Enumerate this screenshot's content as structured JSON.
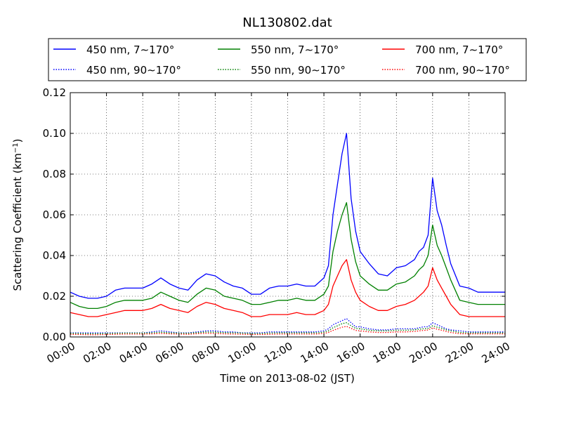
{
  "chart_data": {
    "type": "line",
    "title": "NL130802.dat",
    "xlabel": "Time on 2013-08-02 (JST)",
    "ylabel": "Scattering Coefficient (km",
    "ylabel_exp": "−1",
    "ylabel_close": ")",
    "xlim": [
      0,
      24
    ],
    "ylim": [
      0,
      0.12
    ],
    "grid": true,
    "legend_position": "top",
    "x_ticks": [
      0,
      2,
      4,
      6,
      8,
      10,
      12,
      14,
      16,
      18,
      20,
      22,
      24
    ],
    "x_tick_labels": [
      "00:00",
      "02:00",
      "04:00",
      "06:00",
      "08:00",
      "10:00",
      "12:00",
      "14:00",
      "16:00",
      "18:00",
      "20:00",
      "22:00",
      "24:00"
    ],
    "y_ticks": [
      0,
      0.02,
      0.04,
      0.06,
      0.08,
      0.1,
      0.12
    ],
    "y_tick_labels": [
      "0.00",
      "0.02",
      "0.04",
      "0.06",
      "0.08",
      "0.10",
      "0.12"
    ],
    "x": [
      0,
      0.5,
      1,
      1.5,
      2,
      2.5,
      3,
      3.5,
      4,
      4.5,
      5,
      5.5,
      6,
      6.5,
      7,
      7.5,
      8,
      8.5,
      9,
      9.5,
      10,
      10.5,
      11,
      11.5,
      12,
      12.5,
      13,
      13.5,
      14,
      14.25,
      14.5,
      14.75,
      15,
      15.25,
      15.5,
      15.75,
      16,
      16.5,
      17,
      17.5,
      18,
      18.5,
      19,
      19.25,
      19.5,
      19.75,
      20,
      20.25,
      20.5,
      20.75,
      21,
      21.5,
      22,
      22.5,
      23,
      23.5,
      24
    ],
    "series": [
      {
        "name": "450 nm, 7∼170°",
        "color": "#0000ff",
        "style": "solid",
        "values": [
          0.022,
          0.02,
          0.019,
          0.019,
          0.02,
          0.023,
          0.024,
          0.024,
          0.024,
          0.026,
          0.029,
          0.026,
          0.024,
          0.023,
          0.028,
          0.031,
          0.03,
          0.027,
          0.025,
          0.024,
          0.021,
          0.021,
          0.024,
          0.025,
          0.025,
          0.026,
          0.025,
          0.025,
          0.029,
          0.035,
          0.06,
          0.075,
          0.09,
          0.1,
          0.068,
          0.052,
          0.042,
          0.036,
          0.031,
          0.03,
          0.034,
          0.035,
          0.038,
          0.042,
          0.044,
          0.05,
          0.078,
          0.062,
          0.055,
          0.045,
          0.036,
          0.025,
          0.024,
          0.022,
          0.022,
          0.022,
          0.022
        ]
      },
      {
        "name": "450 nm, 90∼170°",
        "color": "#0000ff",
        "style": "dotted",
        "values": [
          0.002,
          0.002,
          0.002,
          0.002,
          0.002,
          0.002,
          0.002,
          0.002,
          0.002,
          0.0025,
          0.003,
          0.0025,
          0.002,
          0.002,
          0.0025,
          0.003,
          0.003,
          0.0025,
          0.0025,
          0.002,
          0.002,
          0.002,
          0.0025,
          0.0025,
          0.0025,
          0.0025,
          0.0025,
          0.0025,
          0.003,
          0.004,
          0.006,
          0.007,
          0.008,
          0.009,
          0.007,
          0.005,
          0.005,
          0.004,
          0.0035,
          0.0035,
          0.004,
          0.004,
          0.004,
          0.0045,
          0.005,
          0.005,
          0.007,
          0.006,
          0.005,
          0.004,
          0.0035,
          0.003,
          0.0025,
          0.0025,
          0.0025,
          0.0025,
          0.0025
        ]
      },
      {
        "name": "550 nm, 7∼170°",
        "color": "#008000",
        "style": "solid",
        "values": [
          0.017,
          0.015,
          0.014,
          0.014,
          0.015,
          0.017,
          0.018,
          0.018,
          0.018,
          0.019,
          0.022,
          0.02,
          0.018,
          0.017,
          0.021,
          0.024,
          0.023,
          0.02,
          0.019,
          0.018,
          0.016,
          0.016,
          0.017,
          0.018,
          0.018,
          0.019,
          0.018,
          0.018,
          0.021,
          0.025,
          0.042,
          0.052,
          0.06,
          0.066,
          0.048,
          0.037,
          0.03,
          0.026,
          0.023,
          0.023,
          0.026,
          0.027,
          0.03,
          0.033,
          0.035,
          0.04,
          0.055,
          0.045,
          0.04,
          0.034,
          0.028,
          0.018,
          0.017,
          0.016,
          0.016,
          0.016,
          0.016
        ]
      },
      {
        "name": "550 nm, 90∼170°",
        "color": "#008000",
        "style": "dotted",
        "values": [
          0.0018,
          0.0017,
          0.0016,
          0.0016,
          0.0017,
          0.0018,
          0.0019,
          0.0019,
          0.0019,
          0.002,
          0.0023,
          0.002,
          0.0019,
          0.0018,
          0.0021,
          0.0024,
          0.0023,
          0.0021,
          0.002,
          0.0019,
          0.0017,
          0.0017,
          0.0019,
          0.002,
          0.002,
          0.002,
          0.002,
          0.002,
          0.0023,
          0.003,
          0.0045,
          0.0055,
          0.0065,
          0.007,
          0.0055,
          0.0042,
          0.004,
          0.0033,
          0.003,
          0.003,
          0.0033,
          0.0033,
          0.0035,
          0.0038,
          0.004,
          0.0042,
          0.0055,
          0.0048,
          0.0042,
          0.0035,
          0.003,
          0.0022,
          0.002,
          0.002,
          0.002,
          0.002,
          0.002
        ]
      },
      {
        "name": "700 nm, 7∼170°",
        "color": "#ff0000",
        "style": "solid",
        "values": [
          0.012,
          0.011,
          0.01,
          0.01,
          0.011,
          0.012,
          0.013,
          0.013,
          0.013,
          0.014,
          0.016,
          0.014,
          0.013,
          0.012,
          0.015,
          0.017,
          0.016,
          0.014,
          0.013,
          0.012,
          0.01,
          0.01,
          0.011,
          0.011,
          0.011,
          0.012,
          0.011,
          0.011,
          0.013,
          0.016,
          0.025,
          0.03,
          0.035,
          0.038,
          0.028,
          0.022,
          0.018,
          0.015,
          0.013,
          0.013,
          0.015,
          0.016,
          0.018,
          0.02,
          0.022,
          0.025,
          0.034,
          0.028,
          0.024,
          0.02,
          0.016,
          0.011,
          0.01,
          0.01,
          0.01,
          0.01,
          0.01
        ]
      },
      {
        "name": "700 nm, 90∼170°",
        "color": "#ff0000",
        "style": "dotted",
        "values": [
          0.0013,
          0.0012,
          0.0011,
          0.0011,
          0.0012,
          0.0013,
          0.0014,
          0.0014,
          0.0014,
          0.0015,
          0.0017,
          0.0015,
          0.0014,
          0.0013,
          0.0016,
          0.0018,
          0.0017,
          0.0015,
          0.0014,
          0.0013,
          0.0012,
          0.0012,
          0.0013,
          0.0014,
          0.0014,
          0.0014,
          0.0014,
          0.0014,
          0.0017,
          0.0022,
          0.0032,
          0.004,
          0.0048,
          0.0052,
          0.0042,
          0.0032,
          0.003,
          0.0025,
          0.0022,
          0.0022,
          0.0025,
          0.0025,
          0.0027,
          0.003,
          0.0032,
          0.0034,
          0.0045,
          0.0038,
          0.0033,
          0.0027,
          0.0022,
          0.0016,
          0.0015,
          0.0015,
          0.0015,
          0.0015,
          0.0015
        ]
      }
    ]
  }
}
